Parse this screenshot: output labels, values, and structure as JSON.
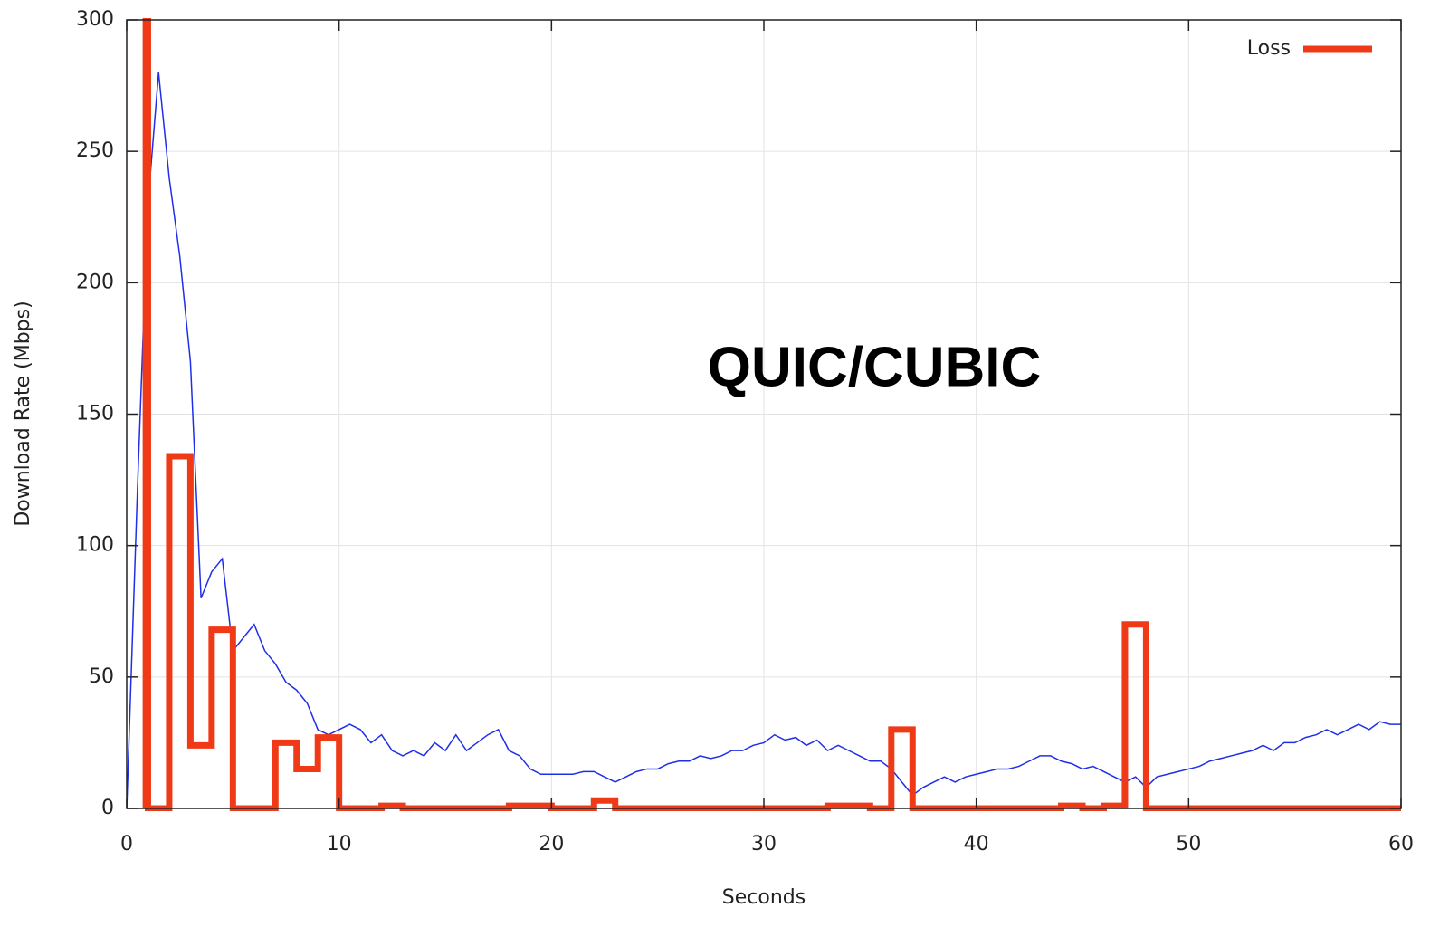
{
  "chart_data": {
    "type": "line",
    "annotation": "QUIC/CUBIC",
    "x_label": "Seconds",
    "y_label": "Download Rate (Mbps)",
    "xlim": [
      0,
      60
    ],
    "ylim": [
      0,
      300
    ],
    "xticks": [
      0,
      10,
      20,
      30,
      40,
      50,
      60
    ],
    "yticks": [
      0,
      50,
      100,
      150,
      200,
      250,
      300
    ],
    "grid": true,
    "legend": "top-right",
    "series": [
      {
        "color": "#1f2ee8",
        "width": 1.5,
        "x": [
          0,
          0.5,
          1,
          1.5,
          2,
          2.5,
          3,
          3.5,
          4,
          4.5,
          5,
          5.5,
          6,
          6.5,
          7,
          7.5,
          8,
          8.5,
          9,
          9.5,
          10,
          10.5,
          11,
          11.5,
          12,
          12.5,
          13,
          13.5,
          14,
          14.5,
          15,
          15.5,
          16,
          16.5,
          17,
          17.5,
          18,
          18.5,
          19,
          19.5,
          20,
          20.5,
          21,
          21.5,
          22,
          22.5,
          23,
          23.5,
          24,
          24.5,
          25,
          25.5,
          26,
          26.5,
          27,
          27.5,
          28,
          28.5,
          29,
          29.5,
          30,
          30.5,
          31,
          31.5,
          32,
          32.5,
          33,
          33.5,
          34,
          34.5,
          35,
          35.5,
          36,
          36.5,
          37,
          37.5,
          38,
          38.5,
          39,
          39.5,
          40,
          40.5,
          41,
          41.5,
          42,
          42.5,
          43,
          43.5,
          44,
          44.5,
          45,
          45.5,
          46,
          46.5,
          47,
          47.5,
          48,
          48.5,
          49,
          49.5,
          50,
          50.5,
          51,
          51.5,
          52,
          52.5,
          53,
          53.5,
          54,
          54.5,
          55,
          55.5,
          56,
          56.5,
          57,
          57.5,
          58,
          58.5,
          59,
          59.5,
          60
        ],
        "values": [
          0,
          120,
          230,
          280,
          240,
          210,
          170,
          80,
          90,
          95,
          60,
          65,
          70,
          60,
          55,
          48,
          45,
          40,
          30,
          28,
          30,
          32,
          30,
          25,
          28,
          22,
          20,
          22,
          20,
          25,
          22,
          28,
          22,
          25,
          28,
          30,
          22,
          20,
          15,
          13,
          13,
          13,
          13,
          14,
          14,
          12,
          10,
          12,
          14,
          15,
          15,
          17,
          18,
          18,
          20,
          19,
          20,
          22,
          22,
          24,
          25,
          28,
          26,
          27,
          24,
          26,
          22,
          24,
          22,
          20,
          18,
          18,
          15,
          10,
          5,
          8,
          10,
          12,
          10,
          12,
          13,
          14,
          15,
          15,
          16,
          18,
          20,
          20,
          18,
          17,
          15,
          16,
          14,
          12,
          10,
          12,
          8,
          12,
          13,
          14,
          15,
          16,
          18,
          19,
          20,
          21,
          22,
          24,
          22,
          25,
          25,
          27,
          28,
          30,
          28,
          30,
          32,
          30,
          33,
          32,
          32
        ]
      },
      {
        "name": "Loss",
        "color": "#f03a17",
        "width": 7,
        "x": [
          0.9,
          0.9,
          1.0,
          1.0,
          2,
          2,
          3,
          3,
          4,
          4,
          5,
          5,
          7,
          7,
          8,
          8,
          9,
          9,
          10,
          10,
          12,
          12,
          13,
          13,
          18,
          18,
          20,
          20,
          22,
          22,
          23,
          23,
          33,
          33,
          35,
          35,
          36,
          36,
          37,
          37,
          44,
          44,
          45,
          45,
          46,
          46,
          47,
          47,
          48,
          48,
          60
        ],
        "values": [
          0,
          300,
          300,
          0,
          0,
          134,
          134,
          24,
          24,
          68,
          68,
          0,
          0,
          25,
          25,
          15,
          15,
          27,
          27,
          0,
          0,
          1,
          1,
          0,
          0,
          1,
          1,
          0,
          0,
          3,
          3,
          0,
          0,
          1,
          1,
          0,
          0,
          30,
          30,
          0,
          0,
          1,
          1,
          0,
          0,
          1,
          1,
          70,
          70,
          0,
          0
        ]
      }
    ]
  }
}
